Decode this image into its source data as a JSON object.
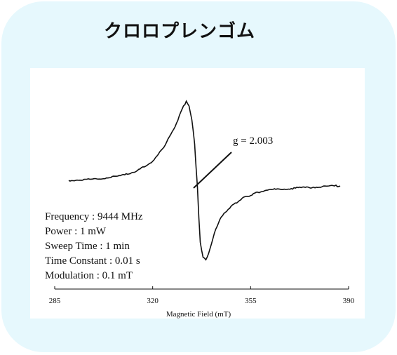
{
  "title": "クロロプレンゴム",
  "chart_data": {
    "type": "line",
    "title": "クロロプレンゴム",
    "xlabel": "Magnetic Field (mT)",
    "ylabel": "",
    "xlim": [
      285,
      390
    ],
    "ylim": [
      -1.0,
      1.0
    ],
    "x_ticks": [
      "285",
      "320",
      "355",
      "390"
    ],
    "grid": false,
    "annotation": "g = 2.003",
    "params": [
      "Frequency : 9444 MHz",
      "Power : 1 mW",
      "Sweep Time : 1 min",
      "Time Constant : 0.01 s",
      "Modulation : 0.1 mT"
    ],
    "series": [
      {
        "x": [
          290,
          295,
          300,
          305,
          310,
          314,
          318,
          320,
          322,
          324,
          326,
          328,
          330,
          331,
          332,
          333,
          334,
          335,
          335.5,
          336,
          336.5,
          337,
          338,
          339,
          340,
          341,
          342,
          343,
          344,
          346,
          348,
          350,
          352,
          354,
          356,
          358,
          360,
          365,
          370,
          375,
          380,
          385,
          387
        ],
        "y": [
          -0.02,
          -0.01,
          0.0,
          0.02,
          0.05,
          0.1,
          0.17,
          0.23,
          0.31,
          0.41,
          0.53,
          0.67,
          0.84,
          0.93,
          0.98,
          0.93,
          0.75,
          0.45,
          0.15,
          -0.1,
          -0.5,
          -0.8,
          -1.0,
          -1.02,
          -0.95,
          -0.82,
          -0.7,
          -0.6,
          -0.52,
          -0.42,
          -0.35,
          -0.3,
          -0.25,
          -0.22,
          -0.19,
          -0.17,
          -0.15,
          -0.13,
          -0.12,
          -0.11,
          -0.1,
          -0.09,
          -0.09
        ]
      }
    ]
  }
}
